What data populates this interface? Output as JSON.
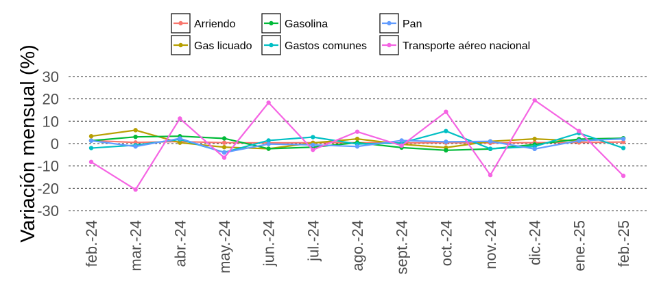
{
  "chart_data": {
    "type": "line",
    "title": "",
    "xlabel": "",
    "ylabel": "Variación mensual (%)",
    "ylim": [
      -33,
      33
    ],
    "yticks": [
      30,
      20,
      10,
      0,
      -10,
      -20,
      -30
    ],
    "grid": true,
    "legend_position": "top",
    "categories": [
      "feb.-24",
      "mar.-24",
      "abr.-24",
      "may.-24",
      "jun.-24",
      "jul.-24",
      "ago.-24",
      "sept.-24",
      "oct.-24",
      "nov.-24",
      "dic.-24",
      "ene.-25",
      "feb.-25"
    ],
    "series": [
      {
        "name": "Arriendo",
        "color": "#F8766D",
        "values": [
          1.4,
          0.5,
          0.9,
          0.4,
          0.3,
          0.4,
          0.4,
          0.3,
          0.4,
          0.3,
          0.4,
          0.5,
          0.7
        ]
      },
      {
        "name": "Gas licuado",
        "color": "#B79F00",
        "values": [
          3.3,
          6.0,
          0.4,
          -1.6,
          -2.3,
          0.3,
          2.1,
          -0.3,
          -1.8,
          1.0,
          2.1,
          1.2,
          2.3
        ]
      },
      {
        "name": "Gasolina",
        "color": "#00BA38",
        "values": [
          1.3,
          3.0,
          3.3,
          2.3,
          -2.3,
          -1.6,
          0.4,
          -1.8,
          -3.0,
          -2.4,
          -0.4,
          2.0,
          2.4
        ]
      },
      {
        "name": "Gastos comunes",
        "color": "#00BFC4",
        "values": [
          -2.0,
          -0.7,
          1.9,
          -3.9,
          1.4,
          2.9,
          -0.2,
          0.3,
          5.6,
          -2.3,
          -1.3,
          4.7,
          -2.0
        ]
      },
      {
        "name": "Pan",
        "color": "#619CFF",
        "values": [
          1.3,
          -1.3,
          2.3,
          -4.0,
          -0.2,
          -0.6,
          -1.3,
          1.4,
          0.8,
          1.0,
          -2.4,
          1.3,
          2.1
        ]
      },
      {
        "name": "Transporte aéreo nacional",
        "color": "#F564E3",
        "values": [
          -8.2,
          -20.6,
          11.2,
          -6.3,
          18.3,
          -2.8,
          5.3,
          -0.9,
          14.2,
          -14.1,
          19.4,
          5.6,
          -14.4
        ]
      }
    ]
  }
}
